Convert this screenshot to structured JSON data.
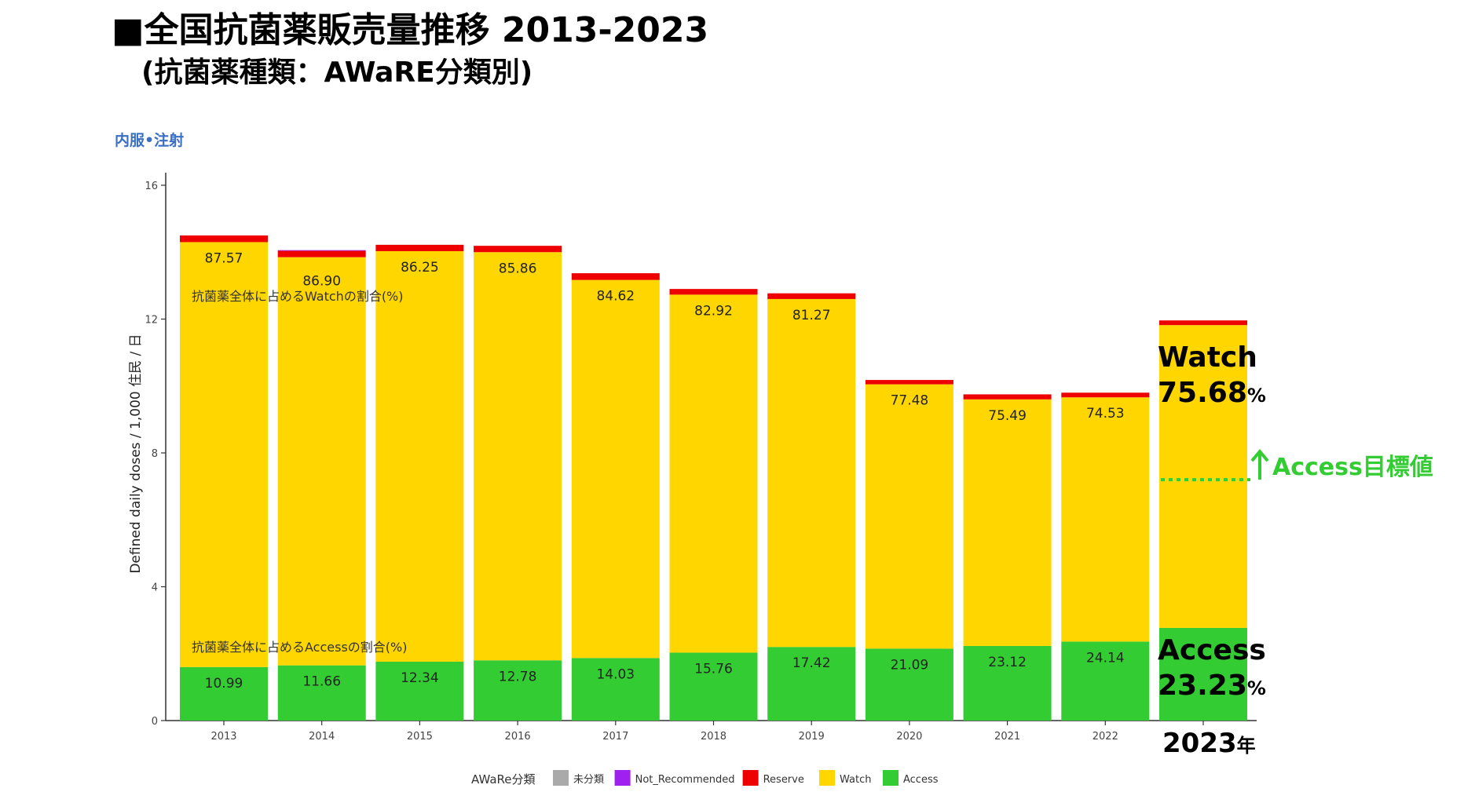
{
  "header": {
    "title_line1": "■全国抗菌薬販売量推移 2013-2023",
    "title_line2": "(抗菌薬種類：AWaRE分類別)",
    "subtitle": "内服•注射"
  },
  "chart_data": {
    "type": "bar",
    "stacked": true,
    "ylabel": "Defined daily doses / 1,000 住民 / 日",
    "ylim": [
      0,
      16
    ],
    "yticks": [
      0,
      4,
      8,
      12,
      16
    ],
    "grid": false,
    "categories": [
      "2013",
      "2014",
      "2015",
      "2016",
      "2017",
      "2018",
      "2019",
      "2020",
      "2021",
      "2022",
      "2023"
    ],
    "x_tick_labels": [
      "2013",
      "2014",
      "2015",
      "2016",
      "2017",
      "2018",
      "2019",
      "2020",
      "2021",
      "2022",
      ""
    ],
    "series": [
      {
        "name": "Access",
        "color": "#33cc33",
        "values": [
          1.6,
          1.65,
          1.76,
          1.8,
          1.87,
          2.03,
          2.2,
          2.15,
          2.23,
          2.36,
          2.77
        ]
      },
      {
        "name": "Watch",
        "color": "#ffd600",
        "values": [
          12.7,
          12.2,
          12.27,
          12.2,
          11.3,
          10.7,
          10.4,
          7.9,
          7.37,
          7.3,
          9.05
        ]
      },
      {
        "name": "Reserve",
        "color": "#ee0000",
        "values": [
          0.2,
          0.19,
          0.19,
          0.19,
          0.2,
          0.17,
          0.17,
          0.13,
          0.15,
          0.14,
          0.14
        ]
      },
      {
        "name": "Not_Recommended",
        "color": "#a020f0",
        "values": [
          0,
          0.02,
          0,
          0,
          0,
          0,
          0,
          0,
          0,
          0,
          0
        ]
      },
      {
        "name": "未分類",
        "color": "#aaaaaa",
        "values": [
          0,
          0,
          0,
          0,
          0,
          0,
          0,
          0,
          0,
          0,
          0
        ]
      }
    ],
    "watch_pct_labels": [
      "87.57",
      "86.90",
      "86.25",
      "85.86",
      "84.62",
      "82.92",
      "81.27",
      "77.48",
      "75.49",
      "74.53",
      ""
    ],
    "access_pct_labels": [
      "10.99",
      "11.66",
      "12.34",
      "12.78",
      "14.03",
      "15.76",
      "17.42",
      "21.09",
      "23.12",
      "24.14",
      ""
    ],
    "annotations": {
      "watch_ratio_text": "抗菌薬全体に占めるWatchの割合(%)",
      "access_ratio_text": "抗菌薬全体に占めるAccessの割合(%)",
      "watch_2023_label": "Watch",
      "watch_2023_value": "75.68",
      "access_2023_label": "Access",
      "access_2023_value": "23.23",
      "pct_unit": "%",
      "year_2023": "2023",
      "year_unit": "年",
      "access_target_label": "Access目標値",
      "access_target_color": "#33cc33",
      "access_target_value": 7.2
    },
    "legend": {
      "title": "AWaRe分類",
      "placement": "bottom",
      "items": [
        {
          "label": "未分類",
          "color": "#aaaaaa"
        },
        {
          "label": "Not_Recommended",
          "color": "#a020f0"
        },
        {
          "label": "Reserve",
          "color": "#ee0000"
        },
        {
          "label": "Watch",
          "color": "#ffd600"
        },
        {
          "label": "Access",
          "color": "#33cc33"
        }
      ]
    }
  }
}
